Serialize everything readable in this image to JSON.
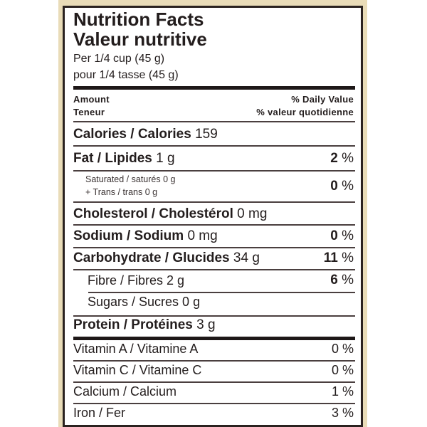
{
  "header": {
    "title_en": "Nutrition Facts",
    "title_fr": "Valeur nutritive",
    "serving_en": "Per 1/4 cup (45 g)",
    "serving_fr": "pour 1/4 tasse (45 g)"
  },
  "columns": {
    "amount_en": "Amount",
    "amount_fr": "Teneur",
    "dv_en": "% Daily Value",
    "dv_fr": "% valeur quotidienne"
  },
  "calories": {
    "label": "Calories / Calories",
    "value": "159"
  },
  "nutrients": {
    "fat": {
      "label": "Fat / Lipides",
      "amount": "1 g",
      "dv": "2 %"
    },
    "saturated": {
      "label": "Saturated / saturés 0 g",
      "trans": "+ Trans / trans 0 g",
      "dv": "0 %"
    },
    "cholesterol": {
      "label": "Cholesterol / Cholestérol",
      "amount": "0 mg"
    },
    "sodium": {
      "label": "Sodium / Sodium",
      "amount": "0 mg",
      "dv": "0 %"
    },
    "carbohydrate": {
      "label": "Carbohydrate / Glucides",
      "amount": "34 g",
      "dv": "11 %"
    },
    "fibre": {
      "label": "Fibre / Fibres 2 g",
      "dv": "6 %"
    },
    "sugars": {
      "label": "Sugars / Sucres 0 g"
    },
    "protein": {
      "label": "Protein / Protéines",
      "amount": "3 g"
    }
  },
  "vitamins": [
    {
      "label": "Vitamin A / Vitamine A",
      "dv": "0 %"
    },
    {
      "label": "Vitamin C / Vitamine C",
      "dv": "0 %"
    },
    {
      "label": "Calcium / Calcium",
      "dv": "1 %"
    },
    {
      "label": "Iron / Fer",
      "dv": "3 %"
    }
  ]
}
